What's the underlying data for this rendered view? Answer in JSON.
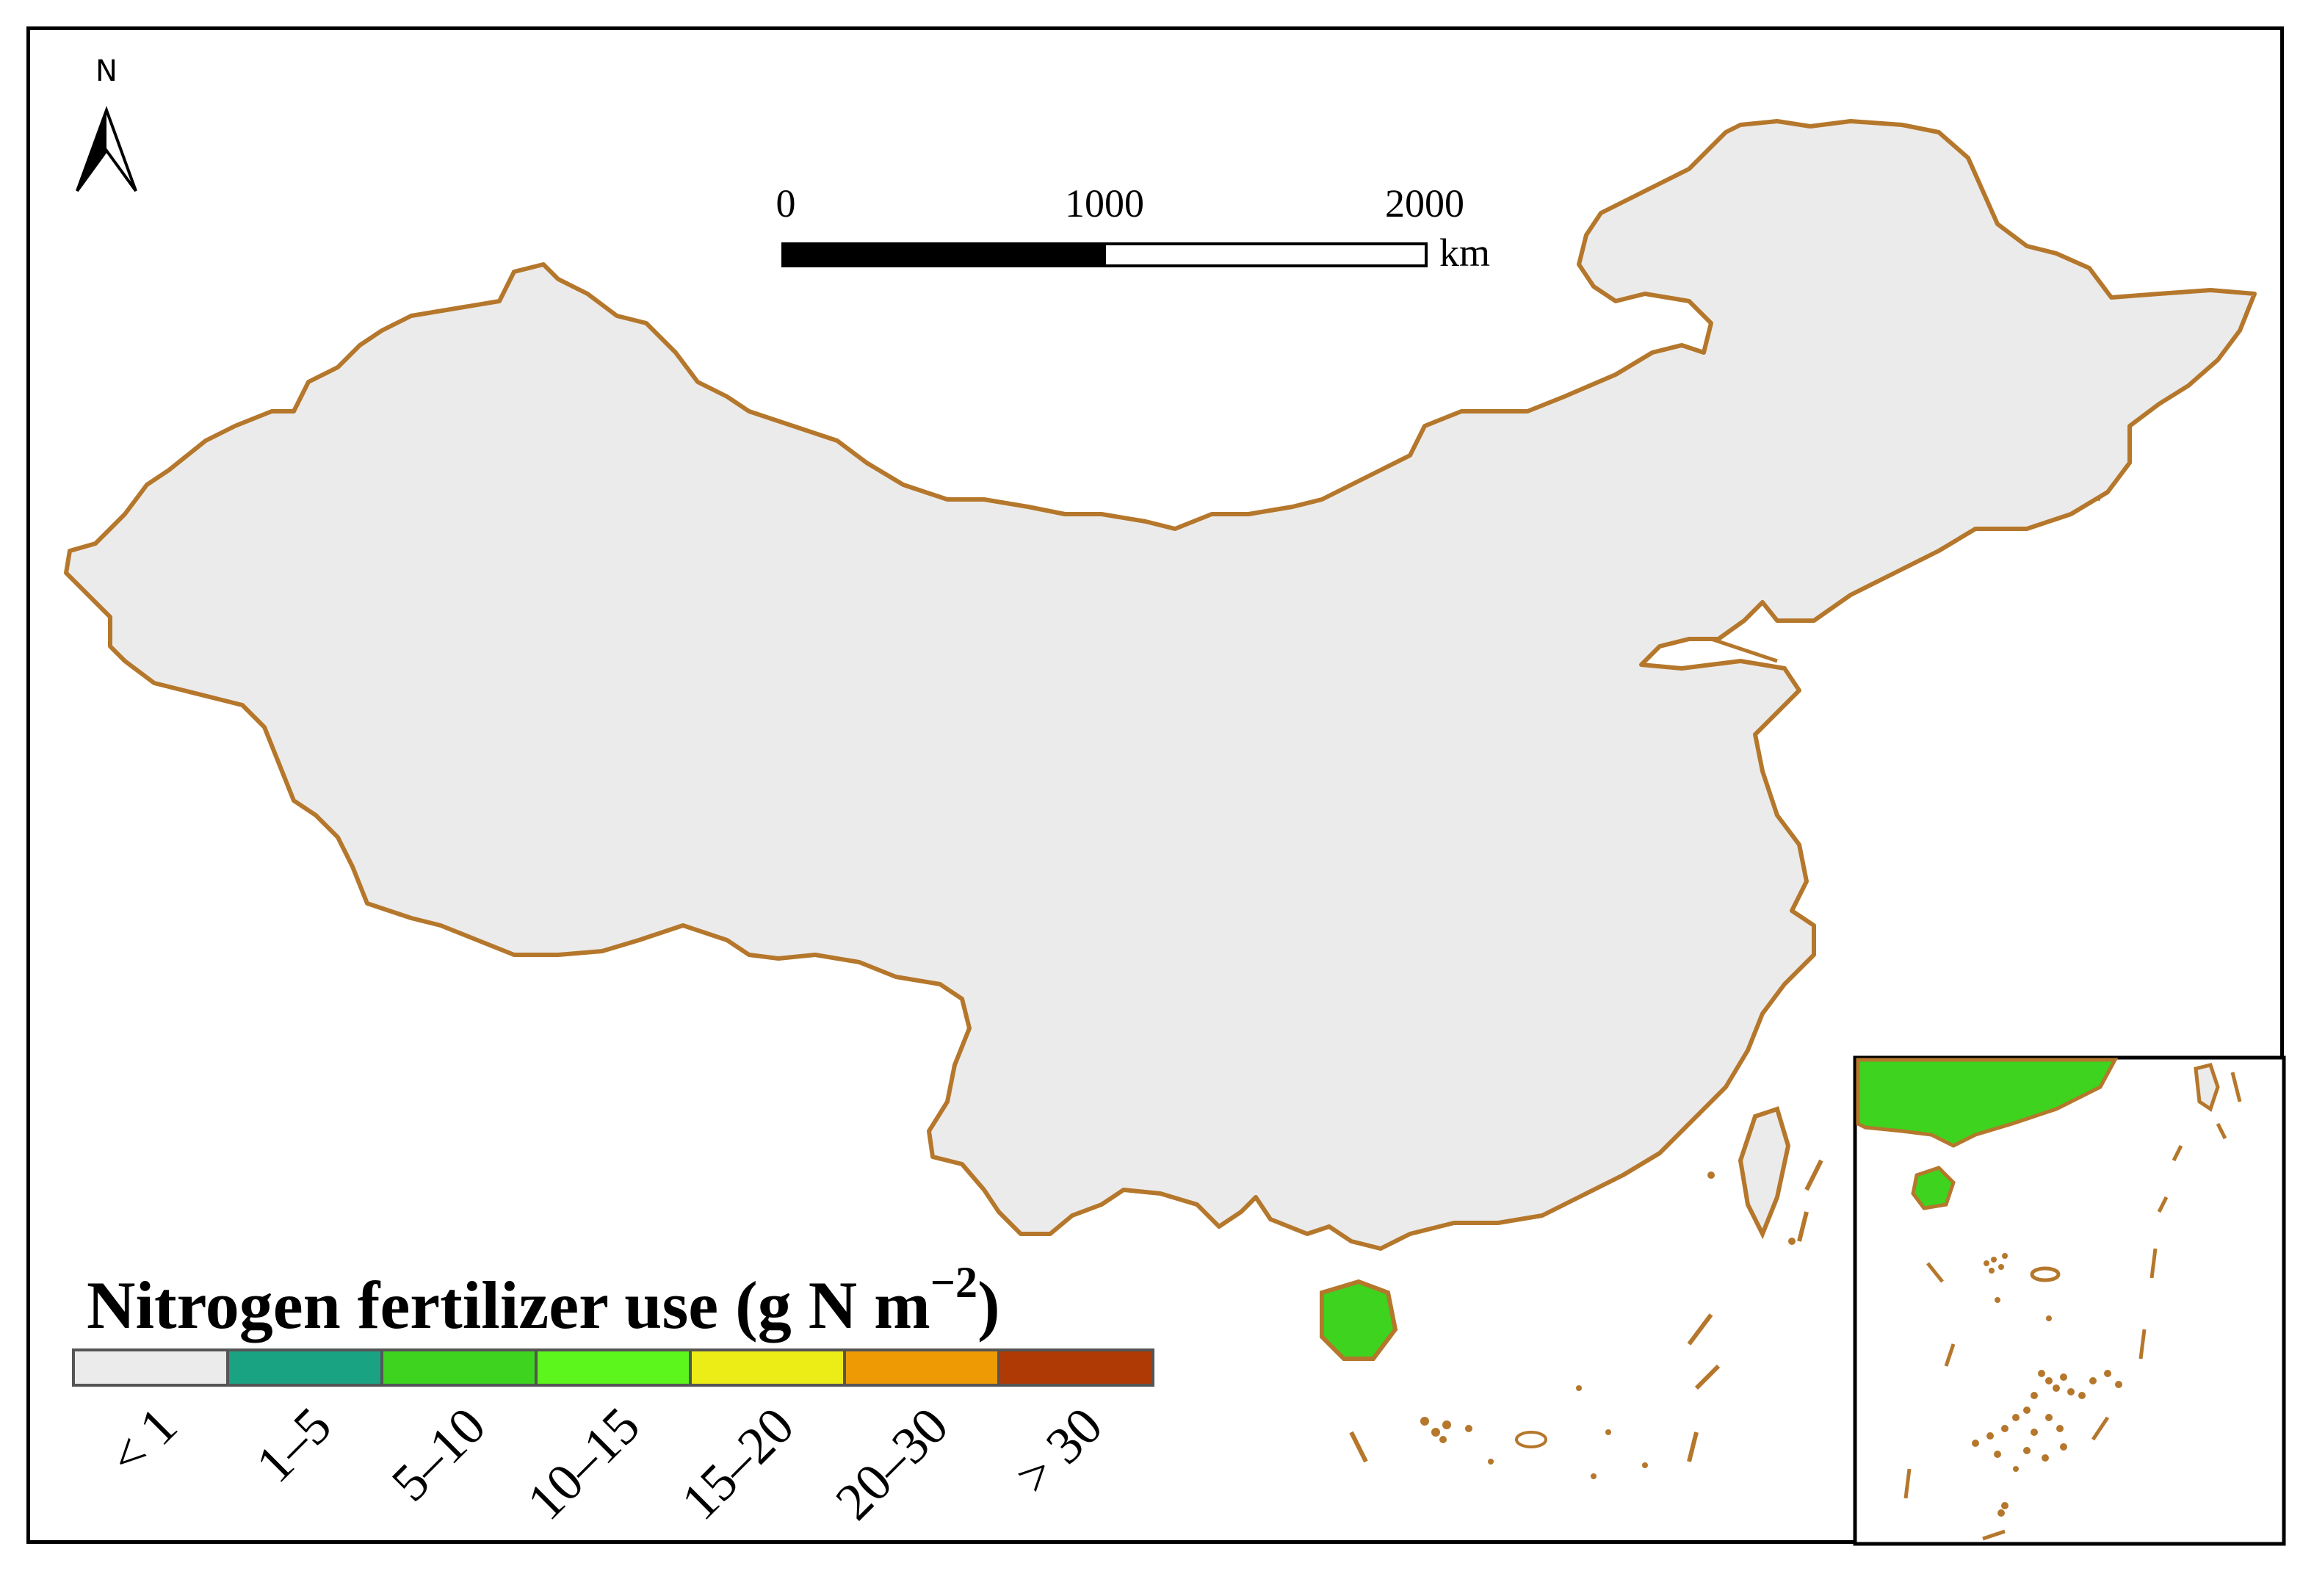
{
  "north_arrow": {
    "label": "N"
  },
  "scale_bar": {
    "ticks": [
      "0",
      "1000",
      "2000"
    ],
    "unit": "km"
  },
  "legend": {
    "title_prefix": "Nitrogen fertilizer use (g N m",
    "title_exponent": "−2",
    "title_suffix": ")",
    "classes": [
      {
        "label": "< 1",
        "color": "#ebebeb"
      },
      {
        "label": "1–5",
        "color": "#1aa383"
      },
      {
        "label": "5–10",
        "color": "#3dd31f"
      },
      {
        "label": "10–15",
        "color": "#5cf51c"
      },
      {
        "label": "15–20",
        "color": "#ecec17"
      },
      {
        "label": "20–30",
        "color": "#ee9a04"
      },
      {
        "label": "> 30",
        "color": "#b03a05"
      }
    ]
  },
  "colors": {
    "boundary": "#b5772b",
    "background_land": "#ebebeb"
  }
}
